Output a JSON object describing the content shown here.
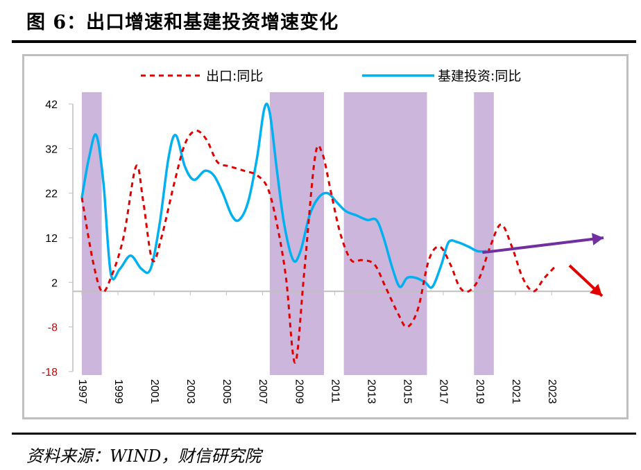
{
  "header": {
    "title": "图 6：出口增速和基建投资增速变化"
  },
  "footer": {
    "source": "资料来源：WIND，财信研究院"
  },
  "colors": {
    "exports": "#e00000",
    "infra": "#00b0f0",
    "shade": "#ccb6dc",
    "arrow_up": "#7030a0",
    "arrow_down": "#e00000"
  },
  "chart_data": {
    "type": "line",
    "title": "",
    "xlabel": "",
    "ylabel": "",
    "ylim": [
      -18,
      42
    ],
    "yticks": [
      "42",
      "32",
      "22",
      "12",
      "2",
      "-8",
      "-18"
    ],
    "xticks": [
      "1997",
      "1999",
      "2001",
      "2003",
      "2005",
      "2007",
      "2009",
      "2011",
      "2013",
      "2015",
      "2017",
      "2019",
      "2021",
      "2023"
    ],
    "legend": [
      "出口:同比",
      "基建投资:同比"
    ],
    "shaded_periods": [
      {
        "from": 1997.0,
        "to": 1998.1
      },
      {
        "from": 2007.4,
        "to": 2010.4
      },
      {
        "from": 2011.5,
        "to": 2016.1
      },
      {
        "from": 2018.7,
        "to": 2019.8
      }
    ],
    "series": [
      {
        "name": "出口:同比",
        "style": "dashed",
        "points": [
          [
            1997.0,
            21
          ],
          [
            1997.6,
            7
          ],
          [
            1998.1,
            0
          ],
          [
            1998.6,
            3
          ],
          [
            1999.3,
            12
          ],
          [
            2000.0,
            28
          ],
          [
            2000.4,
            20
          ],
          [
            2000.9,
            7
          ],
          [
            2001.4,
            12
          ],
          [
            2002.1,
            24
          ],
          [
            2002.7,
            33
          ],
          [
            2003.3,
            36
          ],
          [
            2003.9,
            34
          ],
          [
            2004.5,
            29
          ],
          [
            2005.2,
            28
          ],
          [
            2006.0,
            27
          ],
          [
            2006.7,
            26
          ],
          [
            2007.3,
            23
          ],
          [
            2007.8,
            15
          ],
          [
            2008.3,
            3
          ],
          [
            2008.8,
            -16
          ],
          [
            2009.3,
            4
          ],
          [
            2009.9,
            30
          ],
          [
            2010.3,
            31
          ],
          [
            2010.8,
            22
          ],
          [
            2011.3,
            13
          ],
          [
            2011.9,
            7
          ],
          [
            2012.5,
            7
          ],
          [
            2013.2,
            6
          ],
          [
            2013.8,
            1
          ],
          [
            2014.5,
            -5
          ],
          [
            2015.0,
            -8
          ],
          [
            2015.6,
            -4
          ],
          [
            2016.2,
            7
          ],
          [
            2016.8,
            10
          ],
          [
            2017.4,
            6
          ],
          [
            2017.9,
            1
          ],
          [
            2018.4,
            0
          ],
          [
            2019.0,
            3
          ],
          [
            2019.6,
            10
          ],
          [
            2020.2,
            15
          ],
          [
            2020.8,
            10
          ],
          [
            2021.4,
            3
          ],
          [
            2022.0,
            0
          ],
          [
            2022.6,
            3
          ],
          [
            2023.3,
            6
          ]
        ]
      },
      {
        "name": "基建投资:同比",
        "style": "solid",
        "points": [
          [
            1997.0,
            21
          ],
          [
            1997.4,
            30
          ],
          [
            1997.8,
            35
          ],
          [
            1998.2,
            24
          ],
          [
            1998.6,
            4
          ],
          [
            1999.1,
            5
          ],
          [
            1999.7,
            8
          ],
          [
            2000.3,
            5
          ],
          [
            2000.8,
            5
          ],
          [
            2001.3,
            15
          ],
          [
            2001.8,
            30
          ],
          [
            2002.2,
            35
          ],
          [
            2002.7,
            28
          ],
          [
            2003.2,
            25
          ],
          [
            2003.8,
            27
          ],
          [
            2004.3,
            26
          ],
          [
            2004.8,
            22
          ],
          [
            2005.3,
            17
          ],
          [
            2005.7,
            16
          ],
          [
            2006.2,
            20
          ],
          [
            2006.7,
            30
          ],
          [
            2007.1,
            41
          ],
          [
            2007.4,
            40
          ],
          [
            2007.8,
            27
          ],
          [
            2008.2,
            15
          ],
          [
            2008.7,
            7
          ],
          [
            2009.1,
            9
          ],
          [
            2009.6,
            17
          ],
          [
            2010.1,
            21
          ],
          [
            2010.6,
            22
          ],
          [
            2011.1,
            20
          ],
          [
            2011.6,
            18
          ],
          [
            2012.2,
            17
          ],
          [
            2012.8,
            16
          ],
          [
            2013.3,
            16
          ],
          [
            2013.7,
            12
          ],
          [
            2014.2,
            5
          ],
          [
            2014.6,
            1
          ],
          [
            2015.0,
            3
          ],
          [
            2015.5,
            3
          ],
          [
            2016.0,
            2
          ],
          [
            2016.4,
            1
          ],
          [
            2016.9,
            6
          ],
          [
            2017.3,
            11
          ],
          [
            2017.8,
            11
          ],
          [
            2018.4,
            10
          ],
          [
            2018.9,
            9
          ],
          [
            2019.4,
            9
          ]
        ]
      }
    ]
  }
}
